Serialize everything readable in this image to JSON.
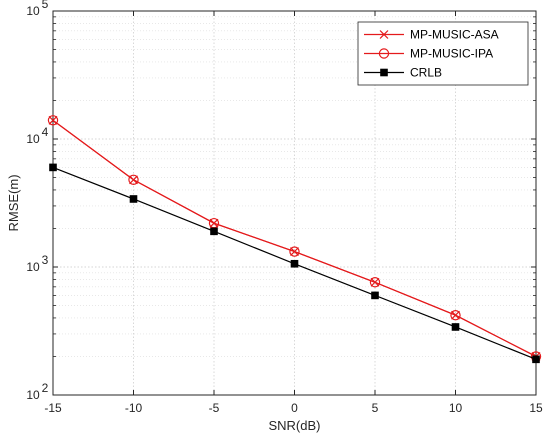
{
  "chart_data": {
    "type": "line",
    "title": "",
    "xlabel": "SNR(dB)",
    "ylabel": "RMSE(m)",
    "xlim": [
      -15,
      15
    ],
    "ylim": [
      100,
      100000
    ],
    "yscale": "log",
    "grid": true,
    "minor_grid": true,
    "legend_position": "top-right",
    "x": [
      -15,
      -10,
      -5,
      0,
      5,
      10,
      15
    ],
    "x_tick_labels": [
      "-15",
      "-10",
      "-5",
      "0",
      "5",
      "10",
      "15"
    ],
    "y_tick_labels": [
      {
        "base": "10",
        "exp": "2",
        "value": 100
      },
      {
        "base": "10",
        "exp": "3",
        "value": 1000
      },
      {
        "base": "10",
        "exp": "4",
        "value": 10000
      },
      {
        "base": "10",
        "exp": "5",
        "value": 100000
      }
    ],
    "series": [
      {
        "name": "MP-MUSIC-ASA",
        "color": "#e41a1c",
        "marker": "x",
        "values": [
          14000,
          4800,
          2200,
          1320,
          760,
          420,
          200
        ]
      },
      {
        "name": "MP-MUSIC-IPA",
        "color": "#e41a1c",
        "marker": "circle",
        "values": [
          14000,
          4800,
          2200,
          1320,
          760,
          420,
          200
        ]
      },
      {
        "name": "CRLB",
        "color": "#000000",
        "marker": "square",
        "values": [
          6000,
          3400,
          1900,
          1060,
          600,
          340,
          190
        ]
      }
    ]
  }
}
